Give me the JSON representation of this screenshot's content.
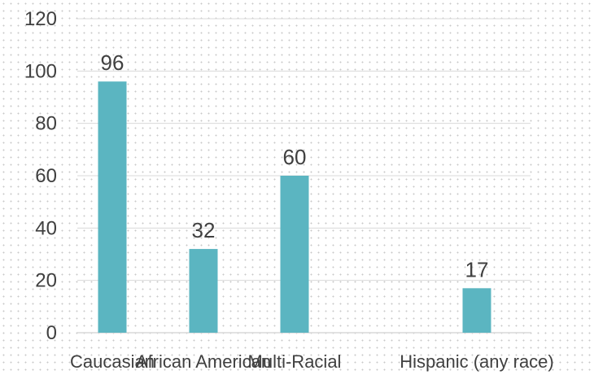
{
  "chart_data": {
    "type": "bar",
    "title": "",
    "xlabel": "",
    "ylabel": "",
    "categories": [
      "Caucasian",
      "African American",
      "Multi-Racial",
      "",
      "Hispanic (any race)"
    ],
    "values": [
      96,
      32,
      60,
      null,
      17
    ],
    "ylim": [
      0,
      120
    ],
    "yticks": [
      0,
      20,
      40,
      60,
      80,
      100,
      120
    ],
    "grid": true,
    "legend": "none",
    "bar_color": "#5bb5c1",
    "data_labels": true
  }
}
